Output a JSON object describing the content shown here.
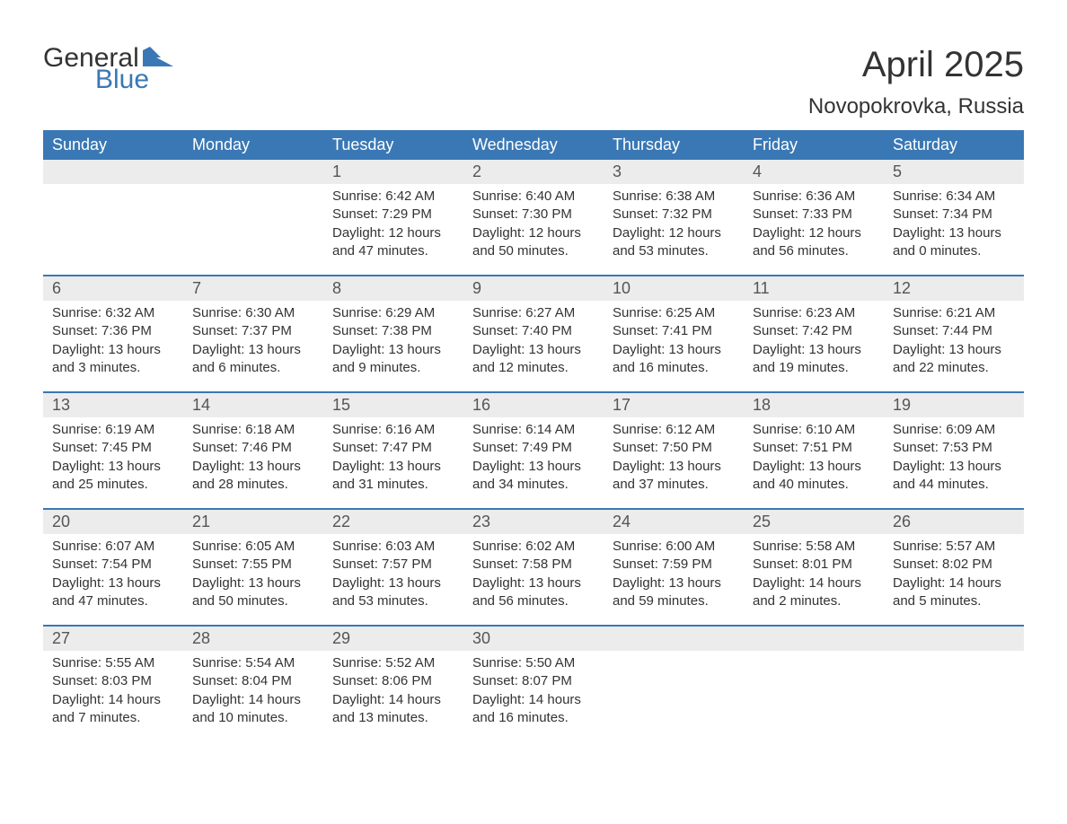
{
  "brand": {
    "word1": "General",
    "word2": "Blue",
    "text_color": "#333333",
    "accent_color": "#3a78b5"
  },
  "header": {
    "title": "April 2025",
    "location": "Novopokrovka, Russia",
    "title_fontsize": 40,
    "location_fontsize": 24
  },
  "calendar": {
    "header_bg": "#3a78b5",
    "header_text_color": "#ffffff",
    "daynum_band_bg": "#ececec",
    "week_border_color": "#3a78b5",
    "days_of_week": [
      "Sunday",
      "Monday",
      "Tuesday",
      "Wednesday",
      "Thursday",
      "Friday",
      "Saturday"
    ],
    "labels": {
      "sunrise": "Sunrise:",
      "sunset": "Sunset:",
      "daylight": "Daylight:"
    },
    "weeks": [
      [
        null,
        null,
        {
          "n": "1",
          "sunrise": "6:42 AM",
          "sunset": "7:29 PM",
          "daylight": "12 hours and 47 minutes."
        },
        {
          "n": "2",
          "sunrise": "6:40 AM",
          "sunset": "7:30 PM",
          "daylight": "12 hours and 50 minutes."
        },
        {
          "n": "3",
          "sunrise": "6:38 AM",
          "sunset": "7:32 PM",
          "daylight": "12 hours and 53 minutes."
        },
        {
          "n": "4",
          "sunrise": "6:36 AM",
          "sunset": "7:33 PM",
          "daylight": "12 hours and 56 minutes."
        },
        {
          "n": "5",
          "sunrise": "6:34 AM",
          "sunset": "7:34 PM",
          "daylight": "13 hours and 0 minutes."
        }
      ],
      [
        {
          "n": "6",
          "sunrise": "6:32 AM",
          "sunset": "7:36 PM",
          "daylight": "13 hours and 3 minutes."
        },
        {
          "n": "7",
          "sunrise": "6:30 AM",
          "sunset": "7:37 PM",
          "daylight": "13 hours and 6 minutes."
        },
        {
          "n": "8",
          "sunrise": "6:29 AM",
          "sunset": "7:38 PM",
          "daylight": "13 hours and 9 minutes."
        },
        {
          "n": "9",
          "sunrise": "6:27 AM",
          "sunset": "7:40 PM",
          "daylight": "13 hours and 12 minutes."
        },
        {
          "n": "10",
          "sunrise": "6:25 AM",
          "sunset": "7:41 PM",
          "daylight": "13 hours and 16 minutes."
        },
        {
          "n": "11",
          "sunrise": "6:23 AM",
          "sunset": "7:42 PM",
          "daylight": "13 hours and 19 minutes."
        },
        {
          "n": "12",
          "sunrise": "6:21 AM",
          "sunset": "7:44 PM",
          "daylight": "13 hours and 22 minutes."
        }
      ],
      [
        {
          "n": "13",
          "sunrise": "6:19 AM",
          "sunset": "7:45 PM",
          "daylight": "13 hours and 25 minutes."
        },
        {
          "n": "14",
          "sunrise": "6:18 AM",
          "sunset": "7:46 PM",
          "daylight": "13 hours and 28 minutes."
        },
        {
          "n": "15",
          "sunrise": "6:16 AM",
          "sunset": "7:47 PM",
          "daylight": "13 hours and 31 minutes."
        },
        {
          "n": "16",
          "sunrise": "6:14 AM",
          "sunset": "7:49 PM",
          "daylight": "13 hours and 34 minutes."
        },
        {
          "n": "17",
          "sunrise": "6:12 AM",
          "sunset": "7:50 PM",
          "daylight": "13 hours and 37 minutes."
        },
        {
          "n": "18",
          "sunrise": "6:10 AM",
          "sunset": "7:51 PM",
          "daylight": "13 hours and 40 minutes."
        },
        {
          "n": "19",
          "sunrise": "6:09 AM",
          "sunset": "7:53 PM",
          "daylight": "13 hours and 44 minutes."
        }
      ],
      [
        {
          "n": "20",
          "sunrise": "6:07 AM",
          "sunset": "7:54 PM",
          "daylight": "13 hours and 47 minutes."
        },
        {
          "n": "21",
          "sunrise": "6:05 AM",
          "sunset": "7:55 PM",
          "daylight": "13 hours and 50 minutes."
        },
        {
          "n": "22",
          "sunrise": "6:03 AM",
          "sunset": "7:57 PM",
          "daylight": "13 hours and 53 minutes."
        },
        {
          "n": "23",
          "sunrise": "6:02 AM",
          "sunset": "7:58 PM",
          "daylight": "13 hours and 56 minutes."
        },
        {
          "n": "24",
          "sunrise": "6:00 AM",
          "sunset": "7:59 PM",
          "daylight": "13 hours and 59 minutes."
        },
        {
          "n": "25",
          "sunrise": "5:58 AM",
          "sunset": "8:01 PM",
          "daylight": "14 hours and 2 minutes."
        },
        {
          "n": "26",
          "sunrise": "5:57 AM",
          "sunset": "8:02 PM",
          "daylight": "14 hours and 5 minutes."
        }
      ],
      [
        {
          "n": "27",
          "sunrise": "5:55 AM",
          "sunset": "8:03 PM",
          "daylight": "14 hours and 7 minutes."
        },
        {
          "n": "28",
          "sunrise": "5:54 AM",
          "sunset": "8:04 PM",
          "daylight": "14 hours and 10 minutes."
        },
        {
          "n": "29",
          "sunrise": "5:52 AM",
          "sunset": "8:06 PM",
          "daylight": "14 hours and 13 minutes."
        },
        {
          "n": "30",
          "sunrise": "5:50 AM",
          "sunset": "8:07 PM",
          "daylight": "14 hours and 16 minutes."
        },
        null,
        null,
        null
      ]
    ]
  }
}
